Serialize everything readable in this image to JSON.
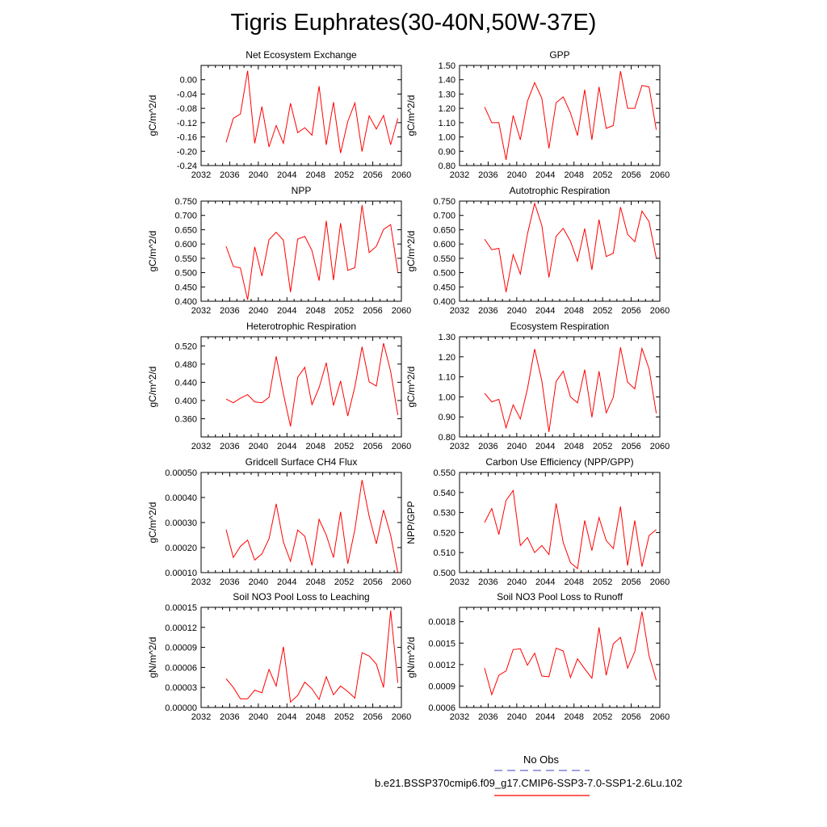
{
  "title": "Tigris Euphrates(30-40N,50W-37E)",
  "legend": {
    "items": [
      {
        "label": "No Obs",
        "color": "#6666cc",
        "dash": "dashed"
      },
      {
        "label": "b.e21.BSSP370cmip6.f09_g17.CMIP6-SSP3-7.0-SSP1-2.6Lu.102",
        "color": "#ff0000",
        "dash": "solid"
      }
    ]
  },
  "x_ticks": [
    "2032",
    "2036",
    "2040",
    "2044",
    "2048",
    "2052",
    "2056",
    "2060"
  ],
  "x": [
    2035.5,
    2036.5,
    2037.5,
    2038.5,
    2039.5,
    2040.5,
    2041.5,
    2042.5,
    2043.5,
    2044.5,
    2045.5,
    2046.5,
    2047.5,
    2048.5,
    2049.5,
    2050.5,
    2051.5,
    2052.5,
    2053.5,
    2054.5,
    2055.5,
    2056.5,
    2057.5,
    2058.5,
    2059.5
  ],
  "chart_data": [
    {
      "type": "line",
      "title": "Net Ecosystem Exchange",
      "ylabel": "gC/m^2/d",
      "ylim": [
        -0.24,
        0.04
      ],
      "yticks": [
        "0.00",
        "-0.04",
        "-0.08",
        "-0.12",
        "-0.16",
        "-0.20",
        "-0.24"
      ],
      "values": [
        -0.175,
        -0.108,
        -0.096,
        0.025,
        -0.178,
        -0.075,
        -0.188,
        -0.128,
        -0.178,
        -0.066,
        -0.148,
        -0.134,
        -0.155,
        -0.018,
        -0.182,
        -0.063,
        -0.205,
        -0.117,
        -0.065,
        -0.201,
        -0.101,
        -0.138,
        -0.1,
        -0.182,
        -0.108
      ]
    },
    {
      "type": "line",
      "title": "GPP",
      "ylabel": "gC/m^2/d",
      "ylim": [
        0.8,
        1.5
      ],
      "yticks": [
        "1.50",
        "1.40",
        "1.30",
        "1.20",
        "1.10",
        "1.00",
        "0.90",
        "0.80"
      ],
      "values": [
        1.21,
        1.1,
        1.1,
        0.84,
        1.15,
        0.98,
        1.25,
        1.38,
        1.27,
        0.92,
        1.24,
        1.28,
        1.17,
        1.01,
        1.33,
        0.98,
        1.35,
        1.06,
        1.08,
        1.46,
        1.2,
        1.2,
        1.36,
        1.35,
        1.05
      ]
    },
    {
      "type": "line",
      "title": "NPP",
      "ylabel": "gC/m^2/d",
      "ylim": [
        0.4,
        0.75
      ],
      "yticks": [
        "0.750",
        "0.700",
        "0.650",
        "0.600",
        "0.550",
        "0.500",
        "0.450",
        "0.400"
      ],
      "values": [
        0.592,
        0.522,
        0.516,
        0.405,
        0.59,
        0.488,
        0.615,
        0.641,
        0.613,
        0.432,
        0.617,
        0.627,
        0.577,
        0.472,
        0.681,
        0.474,
        0.673,
        0.508,
        0.517,
        0.736,
        0.57,
        0.592,
        0.651,
        0.668,
        0.503
      ]
    },
    {
      "type": "line",
      "title": "Autotrophic Respiration",
      "ylabel": "gC/m^2/d",
      "ylim": [
        0.4,
        0.75
      ],
      "yticks": [
        "0.750",
        "0.700",
        "0.650",
        "0.600",
        "0.550",
        "0.500",
        "0.450",
        "0.400"
      ],
      "values": [
        0.617,
        0.58,
        0.585,
        0.432,
        0.563,
        0.495,
        0.635,
        0.742,
        0.665,
        0.483,
        0.627,
        0.655,
        0.61,
        0.54,
        0.654,
        0.51,
        0.685,
        0.556,
        0.568,
        0.729,
        0.634,
        0.608,
        0.715,
        0.678,
        0.551
      ]
    },
    {
      "type": "line",
      "title": "Heterotrophic Respiration",
      "ylabel": "gC/m^2/d",
      "ylim": [
        0.32,
        0.54
      ],
      "yticks": [
        "0.520",
        "0.480",
        "0.440",
        "0.400",
        "0.360"
      ],
      "values": [
        0.403,
        0.395,
        0.405,
        0.413,
        0.397,
        0.395,
        0.407,
        0.497,
        0.415,
        0.343,
        0.451,
        0.473,
        0.391,
        0.428,
        0.483,
        0.389,
        0.443,
        0.366,
        0.43,
        0.518,
        0.441,
        0.432,
        0.526,
        0.464,
        0.368
      ]
    },
    {
      "type": "line",
      "title": "Ecosystem Respiration",
      "ylabel": "gC/m^2/d",
      "ylim": [
        0.8,
        1.3
      ],
      "yticks": [
        "1.30",
        "1.20",
        "1.10",
        "1.00",
        "0.90",
        "0.80"
      ],
      "values": [
        1.018,
        0.975,
        0.988,
        0.846,
        0.96,
        0.89,
        1.04,
        1.239,
        1.08,
        0.825,
        1.077,
        1.128,
        1.0,
        0.97,
        1.136,
        0.898,
        1.128,
        0.92,
        0.998,
        1.247,
        1.073,
        1.04,
        1.242,
        1.14,
        0.918
      ]
    },
    {
      "type": "line",
      "title": "Gridcell Surface CH4 Flux",
      "ylabel": "gC/m^2/d",
      "ylim": [
        0.0001,
        0.0005
      ],
      "yticks": [
        "0.00050",
        "0.00040",
        "0.00030",
        "0.00020",
        "0.00010"
      ],
      "values": [
        0.000272,
        0.00016,
        0.000205,
        0.00023,
        0.00015,
        0.000175,
        0.000235,
        0.000375,
        0.000222,
        0.000145,
        0.00027,
        0.000245,
        0.000128,
        0.000313,
        0.00025,
        0.00016,
        0.000343,
        0.000135,
        0.000272,
        0.00047,
        0.000325,
        0.000215,
        0.00035,
        0.00025,
        0.0001
      ]
    },
    {
      "type": "line",
      "title": "Carbon Use Efficiency (NPP/GPP)",
      "ylabel": "NPP/GPP",
      "ylim": [
        0.5,
        0.55
      ],
      "yticks": [
        "0.550",
        "0.540",
        "0.530",
        "0.520",
        "0.510",
        "0.500"
      ],
      "values": [
        0.525,
        0.532,
        0.519,
        0.536,
        0.541,
        0.5135,
        0.5175,
        0.51,
        0.5135,
        0.509,
        0.5345,
        0.515,
        0.505,
        0.502,
        0.526,
        0.511,
        0.5275,
        0.516,
        0.512,
        0.533,
        0.5035,
        0.526,
        0.503,
        0.5185,
        0.5215
      ]
    },
    {
      "type": "line",
      "title": "Soil NO3 Pool Loss to Leaching",
      "ylabel": "gN/m^2/d",
      "ylim": [
        0.0,
        0.00015
      ],
      "yticks": [
        "0.00015",
        "0.00012",
        "0.00009",
        "0.00006",
        "0.00003",
        "0.00000"
      ],
      "values": [
        4.3e-05,
        3e-05,
        1.3e-05,
        1.3e-05,
        2.6e-05,
        2.2e-05,
        5.7e-05,
        3.2e-05,
        9.1e-05,
        8e-06,
        1.8e-05,
        3.8e-05,
        2.8e-05,
        1.2e-05,
        4.6e-05,
        1.9e-05,
        3.2e-05,
        2.4e-05,
        1.4e-05,
        8.2e-05,
        7.7e-05,
        6.5e-05,
        3e-05,
        0.000145,
        3.7e-05
      ]
    },
    {
      "type": "line",
      "title": "Soil NO3 Pool Loss to Runoff",
      "ylabel": "gN/m^2/d",
      "ylim": [
        0.0006,
        0.002
      ],
      "yticks": [
        "0.0018",
        "0.0015",
        "0.0012",
        "0.0009",
        "0.0006"
      ],
      "values": [
        0.00115,
        0.00078,
        0.00105,
        0.00111,
        0.00141,
        0.00142,
        0.00119,
        0.00136,
        0.00104,
        0.00103,
        0.00143,
        0.00139,
        0.00102,
        0.00128,
        0.00114,
        0.00101,
        0.00172,
        0.00105,
        0.00149,
        0.00158,
        0.00115,
        0.00138,
        0.00194,
        0.00132,
        0.00098
      ]
    }
  ]
}
